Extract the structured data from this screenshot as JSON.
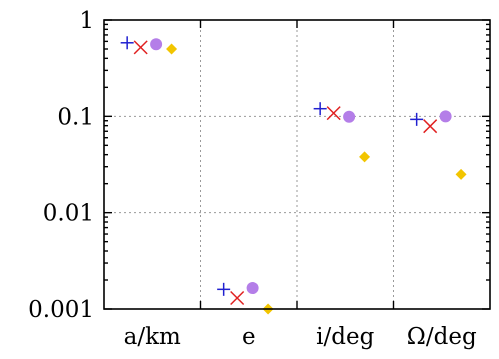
{
  "chart_data": {
    "type": "scatter",
    "yscale": "log",
    "ylim": [
      0.001,
      1
    ],
    "yticks": [
      {
        "value": 1,
        "label": "1"
      },
      {
        "value": 0.1,
        "label": "0.1"
      },
      {
        "value": 0.01,
        "label": "0.01"
      },
      {
        "value": 0.001,
        "label": "0.001"
      }
    ],
    "categories": [
      "a/km",
      "e",
      "i/deg",
      "Ω/deg"
    ],
    "grid": true,
    "series": [
      {
        "marker": "plus",
        "color": "#2020d0",
        "values": [
          0.58,
          0.0016,
          0.12,
          0.093
        ]
      },
      {
        "marker": "cross",
        "color": "#e02020",
        "values": [
          0.52,
          0.0013,
          0.108,
          0.079
        ]
      },
      {
        "marker": "circle",
        "color": "#b47ee8",
        "values": [
          0.56,
          0.00165,
          0.099,
          0.1
        ]
      },
      {
        "marker": "diamond",
        "color": "#f2c500",
        "values": [
          0.5,
          0.001,
          0.038,
          0.025
        ]
      }
    ]
  }
}
